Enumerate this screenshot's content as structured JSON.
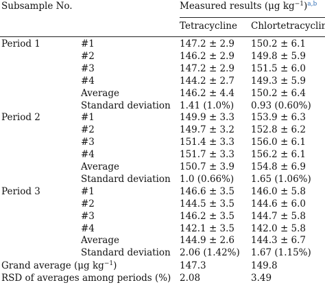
{
  "header": {
    "subsample_label": "Subsample No.",
    "measured_prefix": "Measured results (μg kg",
    "measured_exp": "−1",
    "measured_suffix": ")",
    "measured_notes": "a,b",
    "col_tetracycline": "Tetracycline",
    "col_chlortetracycline": "Chlortetracycline"
  },
  "rows": [
    {
      "period": "Period 1",
      "sub": "#1",
      "tc": "147.2 ± 2.9",
      "ctc": "150.2 ± 6.1"
    },
    {
      "period": "",
      "sub": "#2",
      "tc": "146.2 ± 2.9",
      "ctc": "149.8 ± 5.9"
    },
    {
      "period": "",
      "sub": "#3",
      "tc": "147.2 ± 2.9",
      "ctc": "151.5 ± 6.0"
    },
    {
      "period": "",
      "sub": "#4",
      "tc": "144.2 ± 2.7",
      "ctc": "149.3 ± 5.9"
    },
    {
      "period": "",
      "sub": "Average",
      "tc": "146.2 ± 4.4",
      "ctc": "150.2 ± 6.4"
    },
    {
      "period": "",
      "sub": "Standard deviation",
      "tc": "1.41 (1.0%)",
      "ctc": "0.93 (0.60%)"
    },
    {
      "period": "Period 2",
      "sub": "#1",
      "tc": "149.9 ± 3.3",
      "ctc": "153.9 ± 6.3"
    },
    {
      "period": "",
      "sub": "#2",
      "tc": "149.7 ± 3.2",
      "ctc": "152.8 ± 6.2"
    },
    {
      "period": "",
      "sub": "#3",
      "tc": "151.4 ± 3.3",
      "ctc": "156.0 ± 6.1"
    },
    {
      "period": "",
      "sub": "#4",
      "tc": "151.7 ± 3.3",
      "ctc": "156.2 ± 6.1"
    },
    {
      "period": "",
      "sub": "Average",
      "tc": "150.7 ± 3.9",
      "ctc": "154.8 ± 6.9"
    },
    {
      "period": "",
      "sub": "Standard deviation",
      "tc": "1.0 (0.66%)",
      "ctc": "1.65 (1.06%)"
    },
    {
      "period": "Period 3",
      "sub": "#1",
      "tc": "146.6 ± 3.5",
      "ctc": "146.0 ± 5.8"
    },
    {
      "period": "",
      "sub": "#2",
      "tc": "144.5 ± 3.5",
      "ctc": "144.6 ± 6.0"
    },
    {
      "period": "",
      "sub": "#3",
      "tc": "146.2 ± 3.5",
      "ctc": "144.7 ± 5.8"
    },
    {
      "period": "",
      "sub": "#4",
      "tc": "142.1 ± 3.5",
      "ctc": "142.0 ± 5.8"
    },
    {
      "period": "",
      "sub": "Average",
      "tc": "144.9 ± 2.6",
      "ctc": "144.3 ± 6.7"
    },
    {
      "period": "",
      "sub": "Standard deviation",
      "tc": "2.06 (1.42%)",
      "ctc": "1.67 (1.15%)"
    }
  ],
  "grand_average": {
    "label_prefix": "Grand average (μg kg",
    "label_exp": "−1",
    "label_suffix": ")",
    "tc": "147.3",
    "ctc": "149.8"
  },
  "rsd": {
    "label": "RSD of averages among periods (%)",
    "tc": "2.08",
    "ctc": "3.49"
  },
  "colors": {
    "note_link": "#2f6db5",
    "rule": "#222222"
  }
}
